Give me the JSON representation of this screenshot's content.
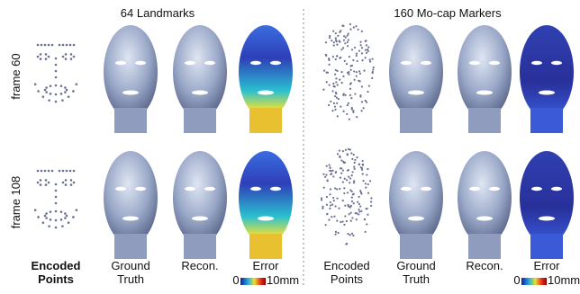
{
  "panels": [
    {
      "title": "64 Landmarks",
      "columns": [
        [
          "Encoded",
          "Points"
        ],
        [
          "Ground",
          "Truth"
        ],
        [
          "Recon."
        ],
        [
          "Error"
        ]
      ],
      "colorbar": [
        "0",
        "10mm"
      ]
    },
    {
      "title": "160 Mo-cap Markers",
      "columns": [
        [
          "Encoded",
          "Points"
        ],
        [
          "Ground",
          "Truth"
        ],
        [
          "Recon."
        ],
        [
          "Error"
        ]
      ],
      "colorbar": [
        "0",
        "10mm"
      ]
    }
  ],
  "rows": [
    "frame 60",
    "frame 108"
  ]
}
